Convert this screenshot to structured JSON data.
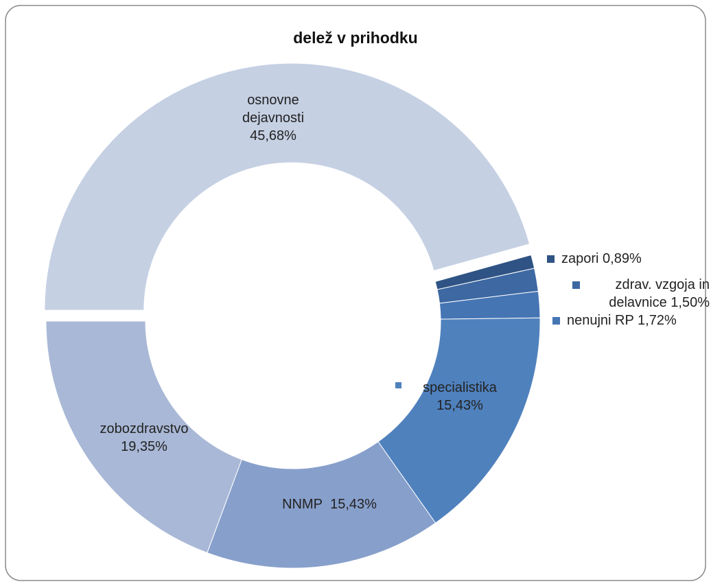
{
  "chart_data": {
    "type": "donut",
    "title": "delež v prihodku",
    "categories": [
      "osnovne dejavnosti",
      "zapori",
      "zdrav. vzgoja in delavnice",
      "nenujni RP",
      "specialistika",
      "NNMP",
      "zobozdravstvo"
    ],
    "values": [
      45.68,
      0.89,
      1.5,
      1.72,
      15.43,
      15.43,
      19.35
    ],
    "value_labels": [
      "45,68%",
      "0,89%",
      "1,50%",
      "1,72%",
      "15,43%",
      "15,43%",
      "19,35%"
    ],
    "colors": [
      "#c5d0e3",
      "#2f5384",
      "#3d68a2",
      "#4675b4",
      "#4f81bd",
      "#879fcb",
      "#a9b8d6"
    ]
  }
}
